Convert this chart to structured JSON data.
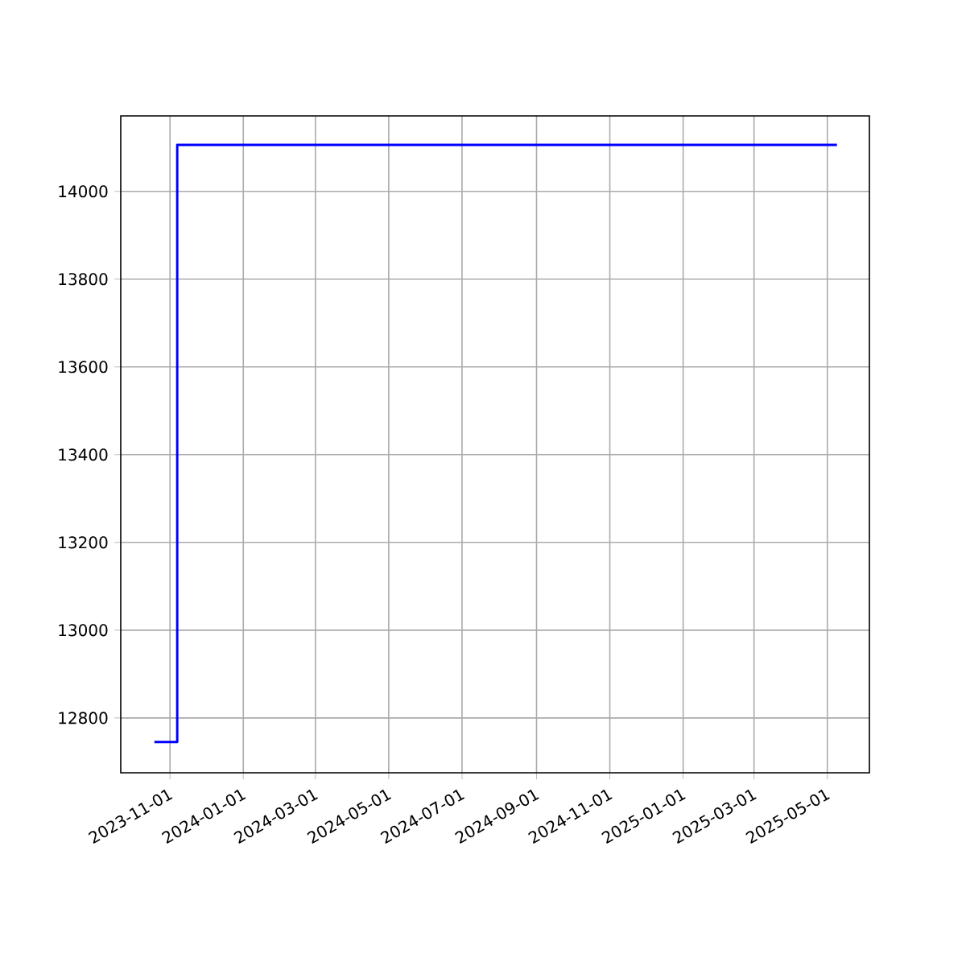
{
  "chart_data": {
    "type": "step",
    "x": [
      "2023-10-19",
      "2023-11-07",
      "2025-05-09"
    ],
    "series": [
      {
        "color": "#0000ff",
        "values": [
          12745,
          14106,
          14106
        ]
      }
    ],
    "xlim": [
      "2023-09-21",
      "2025-06-05"
    ],
    "xticks": [
      "2023-11-01",
      "2024-01-01",
      "2024-03-01",
      "2024-05-01",
      "2024-07-01",
      "2024-09-01",
      "2024-11-01",
      "2025-01-01",
      "2025-03-01",
      "2025-05-01"
    ],
    "ylim": [
      12675,
      14172
    ],
    "yticks": [
      12800,
      13000,
      13200,
      13400,
      13600,
      13800,
      14000
    ],
    "grid": true
  }
}
